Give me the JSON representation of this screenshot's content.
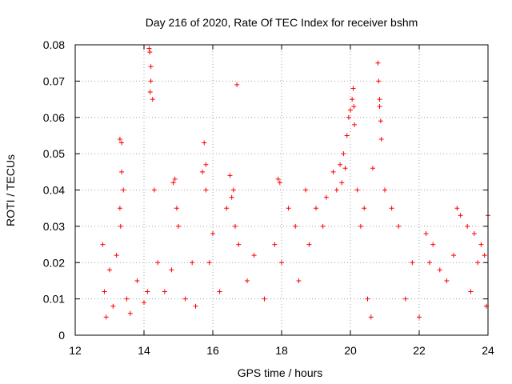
{
  "chart_data": {
    "type": "scatter",
    "title": "Day 216 of 2020, Rate Of TEC Index for receiver bshm",
    "xlabel": "GPS time / hours",
    "ylabel": "ROTI / TECUs",
    "xlim": [
      12,
      24
    ],
    "ylim": [
      0,
      0.08
    ],
    "x_ticks": [
      "12",
      "14",
      "16",
      "18",
      "20",
      "22",
      "24"
    ],
    "y_ticks": [
      "0",
      "0.01",
      "0.02",
      "0.03",
      "0.04",
      "0.05",
      "0.06",
      "0.07",
      "0.08"
    ],
    "grid": true,
    "legend": "none",
    "marker": "plus",
    "color": "#ff0000",
    "series": [
      {
        "x": [
          12.8,
          12.85,
          12.9,
          13.0,
          13.1,
          13.2,
          13.3,
          13.3,
          13.32,
          13.35,
          13.35,
          13.4,
          13.5,
          13.6,
          13.8,
          14.0,
          14.1,
          14.15,
          14.17,
          14.18,
          14.2,
          14.2,
          14.25,
          14.3,
          14.4,
          14.6,
          14.8,
          14.85,
          14.9,
          14.95,
          15.0,
          15.2,
          15.4,
          15.5,
          15.7,
          15.75,
          15.8,
          15.8,
          15.9,
          16.0,
          16.2,
          16.4,
          16.5,
          16.55,
          16.6,
          16.65,
          16.7,
          16.75,
          17.0,
          17.2,
          17.5,
          17.8,
          17.9,
          17.95,
          18.0,
          18.2,
          18.4,
          18.5,
          18.7,
          18.8,
          19.0,
          19.2,
          19.3,
          19.5,
          19.6,
          19.7,
          19.75,
          19.8,
          19.85,
          19.9,
          19.95,
          20.0,
          20.05,
          20.08,
          20.1,
          20.12,
          20.2,
          20.3,
          20.4,
          20.5,
          20.6,
          20.65,
          20.8,
          20.82,
          20.85,
          20.85,
          20.88,
          20.9,
          21.0,
          21.2,
          21.4,
          21.6,
          21.8,
          22.0,
          22.2,
          22.3,
          22.4,
          22.6,
          22.8,
          23.0,
          23.1,
          23.2,
          23.4,
          23.5,
          23.6,
          23.7,
          23.8,
          23.9,
          23.95,
          24.0
        ],
        "y": [
          0.025,
          0.012,
          0.005,
          0.018,
          0.008,
          0.022,
          0.054,
          0.035,
          0.03,
          0.053,
          0.045,
          0.04,
          0.01,
          0.006,
          0.015,
          0.009,
          0.012,
          0.079,
          0.078,
          0.067,
          0.074,
          0.07,
          0.065,
          0.04,
          0.02,
          0.012,
          0.018,
          0.042,
          0.043,
          0.035,
          0.03,
          0.01,
          0.02,
          0.008,
          0.045,
          0.053,
          0.047,
          0.04,
          0.02,
          0.028,
          0.012,
          0.035,
          0.044,
          0.038,
          0.04,
          0.03,
          0.069,
          0.025,
          0.015,
          0.022,
          0.01,
          0.025,
          0.043,
          0.042,
          0.02,
          0.035,
          0.03,
          0.015,
          0.04,
          0.025,
          0.035,
          0.03,
          0.038,
          0.045,
          0.04,
          0.047,
          0.042,
          0.05,
          0.046,
          0.055,
          0.06,
          0.062,
          0.065,
          0.068,
          0.063,
          0.058,
          0.04,
          0.03,
          0.035,
          0.01,
          0.005,
          0.046,
          0.075,
          0.07,
          0.065,
          0.063,
          0.059,
          0.054,
          0.04,
          0.035,
          0.03,
          0.01,
          0.02,
          0.005,
          0.028,
          0.02,
          0.025,
          0.018,
          0.015,
          0.022,
          0.035,
          0.033,
          0.03,
          0.012,
          0.028,
          0.02,
          0.025,
          0.022,
          0.008,
          0.033
        ]
      }
    ]
  }
}
